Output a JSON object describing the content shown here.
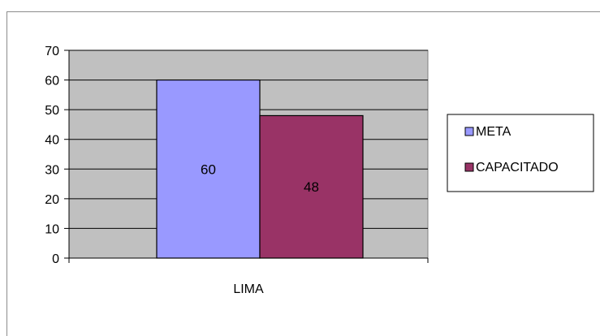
{
  "chart_data": {
    "type": "bar",
    "categories": [
      "LIMA"
    ],
    "series": [
      {
        "name": "META",
        "values": [
          60
        ],
        "color": "#9999ff"
      },
      {
        "name": "CAPACITADO",
        "values": [
          48
        ],
        "color": "#993366"
      }
    ],
    "ylim": [
      0,
      70
    ],
    "yticks": [
      0,
      10,
      20,
      30,
      40,
      50,
      60,
      70
    ],
    "ytick_labels": [
      "0",
      "10",
      "20",
      "30",
      "40",
      "50",
      "60",
      "70"
    ],
    "data_labels": [
      [
        "60"
      ],
      [
        "48"
      ]
    ],
    "grid": true,
    "plot_background": "#c0c0c0",
    "legend_position": "right",
    "title": "",
    "xlabel": "",
    "ylabel": ""
  }
}
